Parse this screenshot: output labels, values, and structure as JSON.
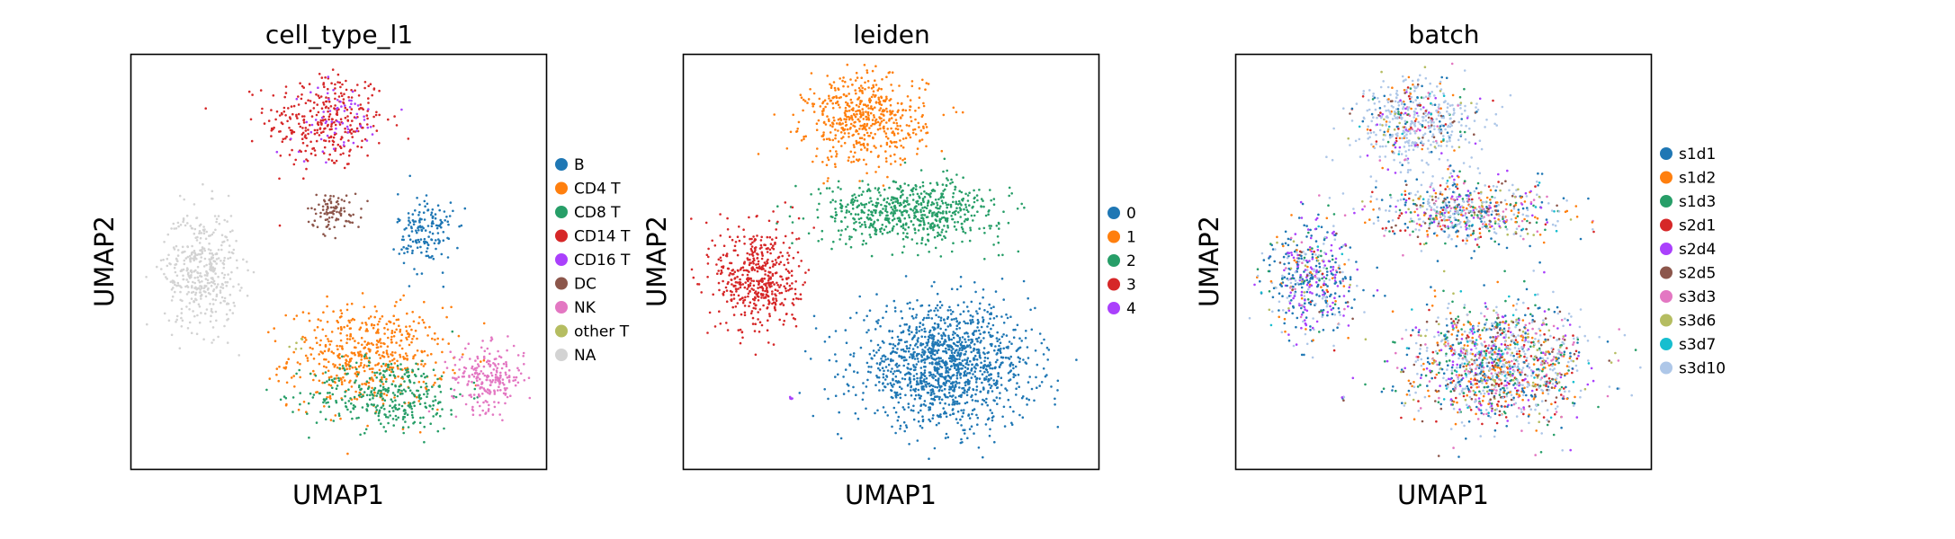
{
  "chart_data": [
    {
      "type": "scatter",
      "title": "cell_type_l1",
      "xlabel": "UMAP1",
      "ylabel": "UMAP2",
      "ticks": false,
      "legend_position": "right",
      "legend": [
        {
          "label": "B",
          "color": "#1f77b4"
        },
        {
          "label": "CD4 T",
          "color": "#ff7f0e"
        },
        {
          "label": "CD8 T",
          "color": "#279e68"
        },
        {
          "label": "CD14 T",
          "color": "#d62728"
        },
        {
          "label": "CD16 T",
          "color": "#aa40fc"
        },
        {
          "label": "DC",
          "color": "#8c564b"
        },
        {
          "label": "NK",
          "color": "#e377c2"
        },
        {
          "label": "other T",
          "color": "#b5bd61"
        },
        {
          "label": "NA",
          "color": "#d3d3d3"
        }
      ],
      "regions": [
        {
          "label": "CD14 T",
          "x": 0.47,
          "y": 0.84,
          "spread_x": 0.13,
          "spread_y": 0.11,
          "share": 0.1
        },
        {
          "label": "CD4 T",
          "x": 0.57,
          "y": 0.27,
          "spread_x": 0.17,
          "spread_y": 0.11,
          "share": 0.16
        },
        {
          "label": "CD8 T",
          "x": 0.62,
          "y": 0.18,
          "spread_x": 0.17,
          "spread_y": 0.08,
          "share": 0.11
        },
        {
          "label": "NK",
          "x": 0.86,
          "y": 0.22,
          "spread_x": 0.08,
          "spread_y": 0.07,
          "share": 0.07
        },
        {
          "label": "NA",
          "x": 0.17,
          "y": 0.48,
          "spread_x": 0.08,
          "spread_y": 0.13,
          "share": 0.13
        },
        {
          "label": "B",
          "x": 0.71,
          "y": 0.57,
          "spread_x": 0.06,
          "spread_y": 0.09,
          "share": 0.05
        },
        {
          "label": "DC",
          "x": 0.49,
          "y": 0.62,
          "spread_x": 0.06,
          "spread_y": 0.04,
          "share": 0.03
        },
        {
          "label": "CD16 T",
          "x": 0.5,
          "y": 0.84,
          "spread_x": 0.1,
          "spread_y": 0.08,
          "share": 0.02
        },
        {
          "label": "other T",
          "x": 0.4,
          "y": 0.3,
          "spread_x": 0.02,
          "spread_y": 0.02,
          "share": 0.002
        }
      ]
    },
    {
      "type": "scatter",
      "title": "leiden",
      "xlabel": "UMAP1",
      "ylabel": "UMAP2",
      "ticks": false,
      "legend_position": "right",
      "legend": [
        {
          "label": "0",
          "color": "#1f77b4"
        },
        {
          "label": "1",
          "color": "#ff7f0e"
        },
        {
          "label": "2",
          "color": "#279e68"
        },
        {
          "label": "3",
          "color": "#d62728"
        },
        {
          "label": "4",
          "color": "#aa40fc"
        }
      ],
      "regions": [
        {
          "label": "0",
          "x": 0.63,
          "y": 0.25,
          "spread_x": 0.19,
          "spread_y": 0.13,
          "share": 0.42
        },
        {
          "label": "1",
          "x": 0.44,
          "y": 0.84,
          "spread_x": 0.13,
          "spread_y": 0.1,
          "share": 0.17
        },
        {
          "label": "2",
          "x": 0.55,
          "y": 0.62,
          "spread_x": 0.2,
          "spread_y": 0.07,
          "share": 0.2
        },
        {
          "label": "3",
          "x": 0.18,
          "y": 0.46,
          "spread_x": 0.09,
          "spread_y": 0.12,
          "share": 0.15
        },
        {
          "label": "4",
          "x": 0.26,
          "y": 0.17,
          "spread_x": 0.004,
          "spread_y": 0.004,
          "share": 0.001
        }
      ]
    },
    {
      "type": "scatter",
      "title": "batch",
      "xlabel": "UMAP1",
      "ylabel": "UMAP2",
      "ticks": false,
      "legend_position": "right",
      "legend": [
        {
          "label": "s1d1",
          "color": "#1f77b4"
        },
        {
          "label": "s1d2",
          "color": "#ff7f0e"
        },
        {
          "label": "s1d3",
          "color": "#279e68"
        },
        {
          "label": "s2d1",
          "color": "#d62728"
        },
        {
          "label": "s2d4",
          "color": "#aa40fc"
        },
        {
          "label": "s2d5",
          "color": "#8c564b"
        },
        {
          "label": "s3d3",
          "color": "#e377c2"
        },
        {
          "label": "s3d6",
          "color": "#b5bd61"
        },
        {
          "label": "s3d7",
          "color": "#17becf"
        },
        {
          "label": "s3d10",
          "color": "#aec7e8"
        }
      ]
    }
  ]
}
